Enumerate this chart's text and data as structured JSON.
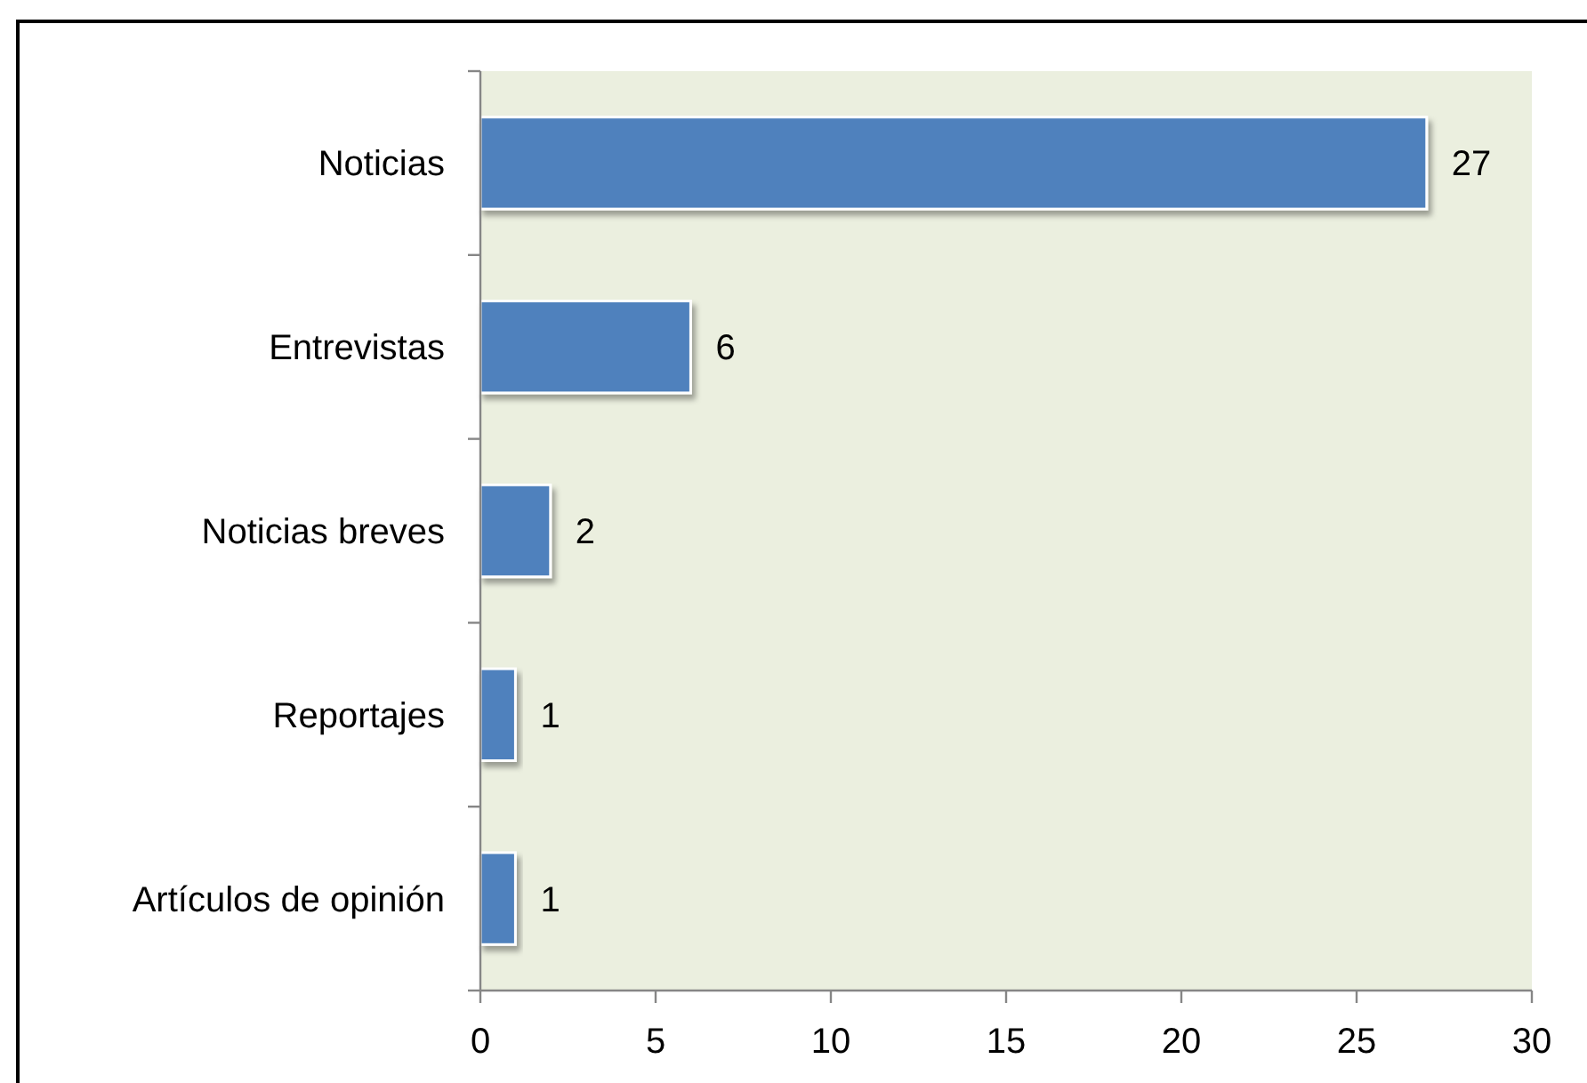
{
  "chart_data": {
    "type": "bar",
    "orientation": "horizontal",
    "categories": [
      "Noticias",
      "Entrevistas",
      "Noticias breves",
      "Reportajes",
      "Artículos de opinión"
    ],
    "values": [
      27,
      6,
      2,
      1,
      1
    ],
    "color": "#4f81bd",
    "xlim": [
      0,
      30
    ],
    "xticks": [
      0,
      5,
      10,
      15,
      20,
      25,
      30
    ],
    "data_labels": true
  }
}
